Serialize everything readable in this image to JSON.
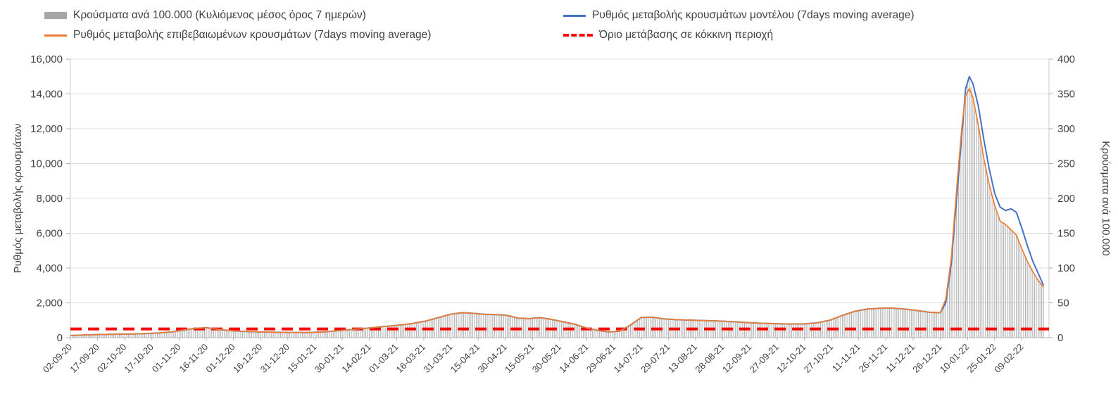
{
  "legend": {
    "items": [
      {
        "label": "Κρούσματα ανά 100.000 (Κυλιόμενος μέσος όρος 7 ημερών)",
        "marker": "bar",
        "color": "#a6a6a6"
      },
      {
        "label": "Ρυθμός μεταβολής κρουσμάτων μοντέλου (7days moving average)",
        "marker": "line",
        "color": "#4472c4"
      },
      {
        "label": "Ρυθμός μεταβολής επιβεβαιωμένων κρουσμάτων (7days moving average)",
        "marker": "line",
        "color": "#ed7d31"
      },
      {
        "label": "Όριο μετάβασης σε κόκκινη περιοχή",
        "marker": "dashed",
        "color": "#ff0000"
      }
    ]
  },
  "chart_data": {
    "type": "combo-bar-line",
    "left_axis": {
      "label": "Ρυθμός μεταβολής κρουσμάτων",
      "min": 0,
      "max": 16000,
      "tick_step": 2000,
      "ticks": [
        "0",
        "2,000",
        "4,000",
        "6,000",
        "8,000",
        "10,000",
        "12,000",
        "14,000",
        "16,000"
      ]
    },
    "right_axis": {
      "label": "Κρούσματα ανά 100.000",
      "min": 0,
      "max": 400,
      "tick_step": 50,
      "ticks": [
        "0",
        "50",
        "100",
        "150",
        "200",
        "250",
        "300",
        "350",
        "400"
      ]
    },
    "x_tick_labels": [
      "02-09-20",
      "17-09-20",
      "02-10-20",
      "17-10-20",
      "01-11-20",
      "16-11-20",
      "01-12-20",
      "16-12-20",
      "31-12-20",
      "15-01-21",
      "30-01-21",
      "14-02-21",
      "01-03-21",
      "16-03-21",
      "31-03-21",
      "15-04-21",
      "30-04-21",
      "15-05-21",
      "30-05-21",
      "14-06-21",
      "29-06-21",
      "14-07-21",
      "29-07-21",
      "13-08-21",
      "28-08-21",
      "12-09-21",
      "27-09-21",
      "12-10-21",
      "27-10-21",
      "11-11-21",
      "26-11-21",
      "11-12-21",
      "26-12-21",
      "10-01-22",
      "25-01-22",
      "09-02-22"
    ],
    "x_tick_interval_days": 15,
    "domain_days": [
      0,
      540
    ],
    "grid": true,
    "legend_position": "top",
    "threshold": {
      "name": "Όριο μετάβασης σε κόκκινη περιοχή",
      "value": 500,
      "axis": "left",
      "color": "#ff0000",
      "style": "dashed"
    },
    "series": [
      {
        "name": "Κρούσματα ανά 100.000 (Κυλιόμενος μέσος όρος 7 ημερών)",
        "type": "bar",
        "axis": "right",
        "color": "#b3b3b3",
        "value_key": "b"
      },
      {
        "name": "Ρυθμός μεταβολής κρουσμάτων μοντέλου (7days moving average)",
        "type": "line",
        "axis": "left",
        "color": "#4472c4",
        "value_key": "m"
      },
      {
        "name": "Ρυθμός μεταβολής επιβεβαιωμένων κρουσμάτων (7days moving average)",
        "type": "line",
        "axis": "left",
        "color": "#ed7d31",
        "value_key": "c"
      }
    ],
    "points_note": "d = days since 02-09-20; c = confirmed rate of change (left axis); m = model rate of change (left axis, equals c when omitted); b = cases per 100.000 (right axis)",
    "points": [
      {
        "d": 0,
        "c": 120,
        "b": 3
      },
      {
        "d": 8,
        "c": 155,
        "b": 4
      },
      {
        "d": 16,
        "c": 180,
        "b": 5
      },
      {
        "d": 24,
        "c": 195,
        "b": 5
      },
      {
        "d": 32,
        "c": 205,
        "b": 5
      },
      {
        "d": 40,
        "c": 225,
        "b": 6
      },
      {
        "d": 48,
        "c": 265,
        "b": 7
      },
      {
        "d": 56,
        "c": 330,
        "b": 8
      },
      {
        "d": 62,
        "c": 430,
        "b": 11
      },
      {
        "d": 68,
        "c": 525,
        "b": 13
      },
      {
        "d": 75,
        "c": 570,
        "b": 14
      },
      {
        "d": 82,
        "c": 470,
        "b": 12
      },
      {
        "d": 90,
        "c": 390,
        "b": 10
      },
      {
        "d": 100,
        "c": 340,
        "b": 9
      },
      {
        "d": 110,
        "c": 315,
        "b": 8
      },
      {
        "d": 120,
        "c": 300,
        "b": 8
      },
      {
        "d": 130,
        "c": 295,
        "b": 7
      },
      {
        "d": 140,
        "c": 330,
        "b": 8
      },
      {
        "d": 150,
        "c": 420,
        "b": 11
      },
      {
        "d": 158,
        "c": 495,
        "b": 12
      },
      {
        "d": 165,
        "c": 555,
        "b": 14
      },
      {
        "d": 172,
        "c": 630,
        "b": 16
      },
      {
        "d": 180,
        "c": 705,
        "b": 18
      },
      {
        "d": 188,
        "c": 805,
        "b": 20
      },
      {
        "d": 196,
        "c": 950,
        "b": 24
      },
      {
        "d": 203,
        "c": 1150,
        "b": 29
      },
      {
        "d": 210,
        "c": 1350,
        "b": 34
      },
      {
        "d": 216,
        "c": 1435,
        "b": 36
      },
      {
        "d": 222,
        "c": 1400,
        "b": 35
      },
      {
        "d": 229,
        "c": 1340,
        "b": 34
      },
      {
        "d": 236,
        "c": 1320,
        "b": 33
      },
      {
        "d": 241,
        "c": 1280,
        "b": 32
      },
      {
        "d": 247,
        "c": 1120,
        "b": 28
      },
      {
        "d": 253,
        "c": 1090,
        "b": 27
      },
      {
        "d": 259,
        "c": 1150,
        "b": 29
      },
      {
        "d": 265,
        "c": 1060,
        "b": 27
      },
      {
        "d": 271,
        "c": 930,
        "b": 23
      },
      {
        "d": 278,
        "c": 780,
        "b": 20
      },
      {
        "d": 285,
        "c": 550,
        "b": 14
      },
      {
        "d": 291,
        "c": 420,
        "b": 11
      },
      {
        "d": 297,
        "c": 330,
        "b": 8
      },
      {
        "d": 303,
        "c": 370,
        "b": 9
      },
      {
        "d": 309,
        "c": 720,
        "b": 18
      },
      {
        "d": 315,
        "c": 1160,
        "b": 29
      },
      {
        "d": 321,
        "c": 1175,
        "b": 29
      },
      {
        "d": 327,
        "c": 1085,
        "b": 27
      },
      {
        "d": 334,
        "c": 1035,
        "b": 26
      },
      {
        "d": 341,
        "c": 1010,
        "b": 25
      },
      {
        "d": 349,
        "c": 985,
        "b": 25
      },
      {
        "d": 357,
        "c": 960,
        "b": 24
      },
      {
        "d": 365,
        "c": 920,
        "b": 23
      },
      {
        "d": 373,
        "c": 870,
        "b": 22
      },
      {
        "d": 381,
        "c": 830,
        "b": 21
      },
      {
        "d": 389,
        "c": 805,
        "b": 20
      },
      {
        "d": 397,
        "c": 785,
        "b": 20
      },
      {
        "d": 405,
        "c": 790,
        "b": 20
      },
      {
        "d": 412,
        "c": 855,
        "b": 21
      },
      {
        "d": 419,
        "c": 1000,
        "b": 25
      },
      {
        "d": 426,
        "c": 1280,
        "b": 32
      },
      {
        "d": 433,
        "c": 1520,
        "b": 38
      },
      {
        "d": 440,
        "c": 1650,
        "b": 41
      },
      {
        "d": 447,
        "c": 1690,
        "b": 42
      },
      {
        "d": 453,
        "c": 1700,
        "b": 43
      },
      {
        "d": 460,
        "c": 1650,
        "b": 41
      },
      {
        "d": 467,
        "c": 1560,
        "b": 39
      },
      {
        "d": 474,
        "c": 1460,
        "b": 37
      },
      {
        "d": 480,
        "c": 1430,
        "b": 36
      },
      {
        "d": 483,
        "c": 2200,
        "m": 2000,
        "b": 55
      },
      {
        "d": 486,
        "c": 4500,
        "m": 4200,
        "b": 113
      },
      {
        "d": 489,
        "c": 8500,
        "m": 8000,
        "b": 213
      },
      {
        "d": 492,
        "c": 12200,
        "m": 11800,
        "b": 305
      },
      {
        "d": 494,
        "c": 13900,
        "m": 14300,
        "b": 350
      },
      {
        "d": 496,
        "c": 14300,
        "m": 15000,
        "b": 375
      },
      {
        "d": 498,
        "c": 13800,
        "m": 14600,
        "b": 345
      },
      {
        "d": 501,
        "c": 12200,
        "m": 13300,
        "b": 305
      },
      {
        "d": 504,
        "c": 10300,
        "m": 11400,
        "b": 258
      },
      {
        "d": 507,
        "c": 8800,
        "m": 9700,
        "b": 220
      },
      {
        "d": 510,
        "c": 7600,
        "m": 8300,
        "b": 190
      },
      {
        "d": 513,
        "c": 6700,
        "m": 7500,
        "b": 168
      },
      {
        "d": 516,
        "c": 6500,
        "m": 7300,
        "b": 163
      },
      {
        "d": 519,
        "c": 6200,
        "m": 7400,
        "b": 155
      },
      {
        "d": 522,
        "c": 5900,
        "m": 7200,
        "b": 148
      },
      {
        "d": 525,
        "c": 5100,
        "m": 6300,
        "b": 128
      },
      {
        "d": 528,
        "c": 4400,
        "m": 5300,
        "b": 110
      },
      {
        "d": 531,
        "c": 3800,
        "m": 4400,
        "b": 95
      },
      {
        "d": 534,
        "c": 3300,
        "m": 3700,
        "b": 83
      },
      {
        "d": 537,
        "c": 2900,
        "m": 3000,
        "b": 73
      }
    ]
  }
}
